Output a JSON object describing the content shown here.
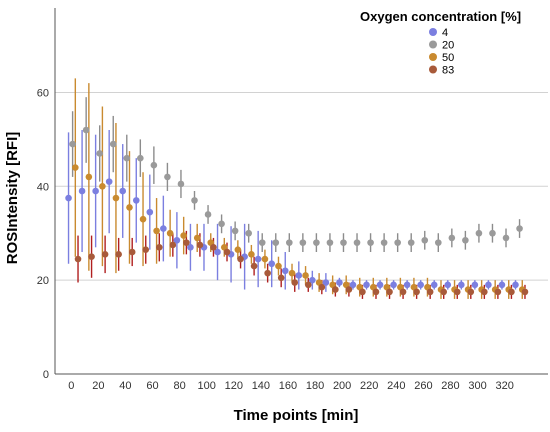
{
  "chart_data": {
    "type": "scatter",
    "xlabel": "Time points [min]",
    "ylabel": "ROSIntensity [RFI]",
    "xlim": [
      -12,
      352
    ],
    "ylim": [
      0,
      78
    ],
    "xticks": [
      0,
      20,
      40,
      60,
      80,
      100,
      120,
      140,
      160,
      180,
      200,
      220,
      240,
      260,
      280,
      300,
      320
    ],
    "yticks": [
      0,
      20,
      40,
      60
    ],
    "grid": {
      "horizontal": true,
      "vertical": false
    },
    "legend": {
      "title": "Oxygen concentration [%]",
      "placement": "top-right"
    },
    "series": [
      {
        "name": "4",
        "color": "#7b7fe0",
        "errorbar_color": "#7b7fe0",
        "x": [
          -2,
          8,
          18,
          28,
          38,
          48,
          58,
          68,
          78,
          88,
          98,
          108,
          118,
          128,
          138,
          148,
          158,
          168,
          178,
          188,
          198,
          208,
          218,
          228,
          238,
          248,
          258,
          268,
          278,
          288,
          298,
          308,
          318,
          328
        ],
        "y": [
          37.5,
          39,
          39,
          41,
          39,
          37,
          34.5,
          31,
          28.5,
          27,
          27,
          26,
          25.5,
          25,
          24.5,
          23.5,
          22,
          21,
          20,
          19.5,
          19.5,
          19,
          19,
          19,
          19,
          19,
          19,
          19,
          19,
          19,
          19,
          19,
          19,
          19
        ],
        "err": [
          14,
          13,
          12,
          11,
          10,
          9,
          8,
          7,
          6,
          5,
          5,
          6,
          6,
          7,
          6,
          5,
          4,
          3,
          2,
          2,
          1,
          1,
          1,
          1,
          1,
          1,
          1,
          1,
          1,
          1,
          1,
          1,
          1,
          1
        ]
      },
      {
        "name": "20",
        "color": "#9a9a9a",
        "errorbar_color": "#8c8c8c",
        "x": [
          1,
          11,
          21,
          31,
          41,
          51,
          61,
          71,
          81,
          91,
          101,
          111,
          121,
          131,
          141,
          151,
          161,
          171,
          181,
          191,
          201,
          211,
          221,
          231,
          241,
          251,
          261,
          271,
          281,
          291,
          301,
          311,
          321,
          331
        ],
        "y": [
          49,
          52,
          47,
          49,
          46,
          46,
          44.5,
          42,
          40.5,
          37,
          34,
          32,
          30.5,
          30,
          28,
          28,
          28,
          28,
          28,
          28,
          28,
          28,
          28,
          28,
          28,
          28,
          28.5,
          28,
          29,
          28.5,
          30,
          30,
          29,
          31
        ],
        "err": [
          7,
          7,
          6,
          6,
          5,
          4,
          4,
          3,
          3,
          2,
          2,
          2,
          2,
          2,
          2,
          2,
          2,
          2,
          2,
          2,
          2,
          2,
          2,
          2,
          2,
          2,
          2,
          2,
          2,
          2,
          2,
          2,
          2,
          2
        ]
      },
      {
        "name": "50",
        "color": "#c98a2f",
        "errorbar_color": "#c98a2f",
        "x": [
          3,
          13,
          23,
          33,
          43,
          53,
          63,
          73,
          83,
          93,
          103,
          113,
          123,
          133,
          143,
          153,
          163,
          173,
          183,
          193,
          203,
          213,
          223,
          233,
          243,
          253,
          263,
          273,
          283,
          293,
          303,
          313,
          323,
          333
        ],
        "y": [
          44,
          42,
          40,
          37.5,
          35.5,
          33,
          30.5,
          30,
          29.5,
          29,
          28,
          27,
          26.5,
          25.5,
          24.5,
          23,
          21.5,
          21,
          19.5,
          19,
          19,
          18.5,
          18.5,
          18.5,
          18.5,
          18.5,
          18.5,
          18,
          18,
          18,
          18,
          18,
          18,
          18
        ],
        "err": [
          19,
          20,
          17,
          16,
          12,
          10,
          7,
          5,
          4,
          3,
          2,
          2,
          2,
          2,
          2,
          2,
          2,
          2,
          2,
          2,
          2,
          2,
          2,
          2,
          2,
          2,
          2,
          2,
          2,
          2,
          2,
          2,
          2,
          2
        ]
      },
      {
        "name": "83",
        "color": "#a85a3a",
        "errorbar_color": "#b01f1f",
        "x": [
          5,
          15,
          25,
          35,
          45,
          55,
          65,
          75,
          85,
          95,
          105,
          115,
          125,
          135,
          145,
          155,
          165,
          175,
          185,
          195,
          205,
          215,
          225,
          235,
          245,
          255,
          265,
          275,
          285,
          295,
          305,
          315,
          325,
          335
        ],
        "y": [
          24.5,
          25,
          25.5,
          25.5,
          26,
          26.5,
          27,
          27.5,
          28,
          27.5,
          27,
          26,
          24.5,
          23,
          21.5,
          20.5,
          19.5,
          19,
          18.5,
          18,
          18,
          17.5,
          17.5,
          17.5,
          17.5,
          17.5,
          17.5,
          17.5,
          17.5,
          17.5,
          17.5,
          17.5,
          17.5,
          17.5
        ],
        "err": [
          5,
          4.5,
          4,
          3.5,
          3,
          3,
          3,
          2.5,
          2.5,
          2.5,
          2,
          2,
          2,
          2,
          2,
          2,
          2,
          1.5,
          1.5,
          1.5,
          1.5,
          1.5,
          1.5,
          1.5,
          1.5,
          1.5,
          1.5,
          1.5,
          1.5,
          1.5,
          1.5,
          1.5,
          1.5,
          1.5
        ]
      }
    ]
  }
}
